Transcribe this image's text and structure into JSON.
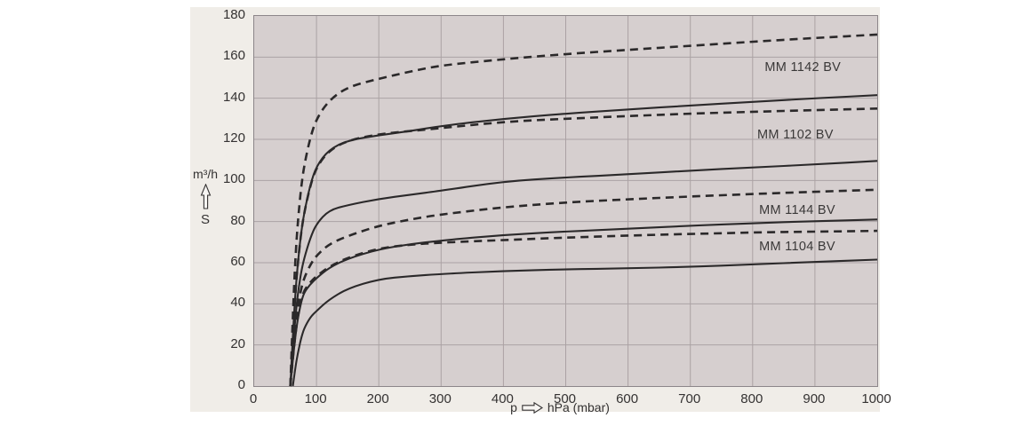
{
  "figure": {
    "bg_color": "#f0ede8",
    "plot_bg_color": "#d6cfcf",
    "grid_color": "#aba2a4",
    "border_color": "#8c8689",
    "curve_color": "#2b292a",
    "text_color": "#343232"
  },
  "chart_data": {
    "type": "line",
    "title": "",
    "y_unit": "m³/h",
    "y_symbol": "S",
    "x_prefix": "p",
    "x_unit": "hPa (mbar)",
    "xlim": [
      0,
      1000
    ],
    "ylim": [
      0,
      180
    ],
    "x_ticks": [
      0,
      100,
      200,
      300,
      400,
      500,
      600,
      700,
      800,
      900,
      1000
    ],
    "y_ticks": [
      0,
      20,
      40,
      60,
      80,
      100,
      120,
      140,
      160,
      180
    ],
    "grid": true,
    "legend_position": "labels-inside-plot",
    "curve_labels": [
      {
        "text": "MM 1142 BV",
        "x": 882,
        "y": 154.5
      },
      {
        "text": "MM 1102 BV",
        "x": 870,
        "y": 121.7
      },
      {
        "text": "MM 1144 BV",
        "x": 873,
        "y": 85.0
      },
      {
        "text": "MM 1104 BV",
        "x": 873,
        "y": 67.3
      }
    ],
    "series": [
      {
        "model": "MM 1142 BV",
        "style": "dashed",
        "points": [
          [
            58,
            0
          ],
          [
            62,
            35
          ],
          [
            66,
            62
          ],
          [
            70,
            80
          ],
          [
            75,
            96
          ],
          [
            80,
            107
          ],
          [
            90,
            121
          ],
          [
            100,
            130
          ],
          [
            120,
            139
          ],
          [
            150,
            145.5
          ],
          [
            200,
            149.5
          ],
          [
            250,
            153
          ],
          [
            300,
            156
          ],
          [
            400,
            159
          ],
          [
            500,
            161.5
          ],
          [
            600,
            163.5
          ],
          [
            700,
            165.5
          ],
          [
            800,
            167.5
          ],
          [
            900,
            169.3
          ],
          [
            1000,
            171
          ]
        ]
      },
      {
        "model": "MM 1142 BV",
        "style": "solid",
        "points": [
          [
            58,
            0
          ],
          [
            62,
            25
          ],
          [
            66,
            45
          ],
          [
            70,
            60
          ],
          [
            75,
            74
          ],
          [
            80,
            84
          ],
          [
            90,
            98
          ],
          [
            100,
            107
          ],
          [
            120,
            115
          ],
          [
            150,
            119.5
          ],
          [
            200,
            122
          ],
          [
            250,
            124
          ],
          [
            300,
            126.5
          ],
          [
            400,
            130
          ],
          [
            500,
            132.5
          ],
          [
            600,
            134.5
          ],
          [
            700,
            136.5
          ],
          [
            800,
            138.2
          ],
          [
            900,
            140
          ],
          [
            1000,
            141.5
          ]
        ]
      },
      {
        "model": "MM 1102 BV",
        "style": "dashed",
        "points": [
          [
            58,
            0
          ],
          [
            62,
            25
          ],
          [
            66,
            45
          ],
          [
            70,
            60
          ],
          [
            75,
            74
          ],
          [
            80,
            84
          ],
          [
            90,
            97.5
          ],
          [
            100,
            106.5
          ],
          [
            120,
            114.5
          ],
          [
            150,
            119.5
          ],
          [
            200,
            122.5
          ],
          [
            250,
            124
          ],
          [
            300,
            125.5
          ],
          [
            400,
            128.5
          ],
          [
            500,
            130
          ],
          [
            600,
            131.3
          ],
          [
            700,
            132.5
          ],
          [
            800,
            133.4
          ],
          [
            900,
            134.2
          ],
          [
            1000,
            135
          ]
        ]
      },
      {
        "model": "MM 1102 BV",
        "style": "solid",
        "points": [
          [
            58,
            0
          ],
          [
            62,
            18
          ],
          [
            66,
            33
          ],
          [
            70,
            45
          ],
          [
            75,
            55
          ],
          [
            80,
            62
          ],
          [
            90,
            72
          ],
          [
            100,
            79
          ],
          [
            120,
            85.5
          ],
          [
            150,
            88
          ],
          [
            200,
            91
          ],
          [
            250,
            93
          ],
          [
            300,
            95
          ],
          [
            400,
            99.5
          ],
          [
            500,
            101.5
          ],
          [
            600,
            103
          ],
          [
            700,
            104.8
          ],
          [
            800,
            106.3
          ],
          [
            900,
            107.8
          ],
          [
            1000,
            109.5
          ]
        ]
      },
      {
        "model": "MM 1144 BV",
        "style": "dashed",
        "points": [
          [
            58,
            0
          ],
          [
            62,
            16
          ],
          [
            66,
            29
          ],
          [
            70,
            39
          ],
          [
            75,
            47
          ],
          [
            80,
            52.5
          ],
          [
            90,
            59
          ],
          [
            100,
            63.5
          ],
          [
            120,
            69
          ],
          [
            150,
            73
          ],
          [
            200,
            78
          ],
          [
            250,
            81
          ],
          [
            300,
            83.5
          ],
          [
            400,
            87
          ],
          [
            500,
            89.3
          ],
          [
            600,
            90.8
          ],
          [
            700,
            92.2
          ],
          [
            800,
            93.4
          ],
          [
            900,
            94.5
          ],
          [
            1000,
            95.5
          ]
        ]
      },
      {
        "model": "MM 1144 BV",
        "style": "solid",
        "points": [
          [
            58,
            0
          ],
          [
            62,
            13
          ],
          [
            66,
            24
          ],
          [
            70,
            33
          ],
          [
            75,
            40.5
          ],
          [
            80,
            45.5
          ],
          [
            90,
            49.5
          ],
          [
            100,
            52.5
          ],
          [
            120,
            57.5
          ],
          [
            150,
            62
          ],
          [
            200,
            66.5
          ],
          [
            250,
            69
          ],
          [
            300,
            70.8
          ],
          [
            400,
            73.5
          ],
          [
            500,
            75.2
          ],
          [
            600,
            76.5
          ],
          [
            700,
            78
          ],
          [
            800,
            79.2
          ],
          [
            900,
            80.2
          ],
          [
            1000,
            81
          ]
        ]
      },
      {
        "model": "MM 1104 BV",
        "style": "dashed",
        "points": [
          [
            58,
            0
          ],
          [
            62,
            13.5
          ],
          [
            66,
            25
          ],
          [
            70,
            34
          ],
          [
            75,
            41.5
          ],
          [
            80,
            46.5
          ],
          [
            90,
            50.5
          ],
          [
            100,
            53.5
          ],
          [
            120,
            58
          ],
          [
            150,
            62.5
          ],
          [
            200,
            67
          ],
          [
            250,
            68.8
          ],
          [
            300,
            69.8
          ],
          [
            400,
            71
          ],
          [
            500,
            72.2
          ],
          [
            600,
            73.2
          ],
          [
            700,
            74
          ],
          [
            800,
            74.7
          ],
          [
            900,
            75.1
          ],
          [
            1000,
            75.5
          ]
        ]
      },
      {
        "model": "MM 1104 BV",
        "style": "solid",
        "points": [
          [
            62,
            0
          ],
          [
            66,
            9
          ],
          [
            70,
            16
          ],
          [
            75,
            23
          ],
          [
            80,
            28
          ],
          [
            90,
            33.5
          ],
          [
            100,
            36.5
          ],
          [
            120,
            42
          ],
          [
            150,
            47.5
          ],
          [
            200,
            52
          ],
          [
            250,
            53.5
          ],
          [
            300,
            54.5
          ],
          [
            400,
            56
          ],
          [
            500,
            56.8
          ],
          [
            600,
            57.3
          ],
          [
            700,
            58
          ],
          [
            800,
            59.2
          ],
          [
            900,
            60.4
          ],
          [
            1000,
            61.5
          ]
        ]
      }
    ]
  }
}
